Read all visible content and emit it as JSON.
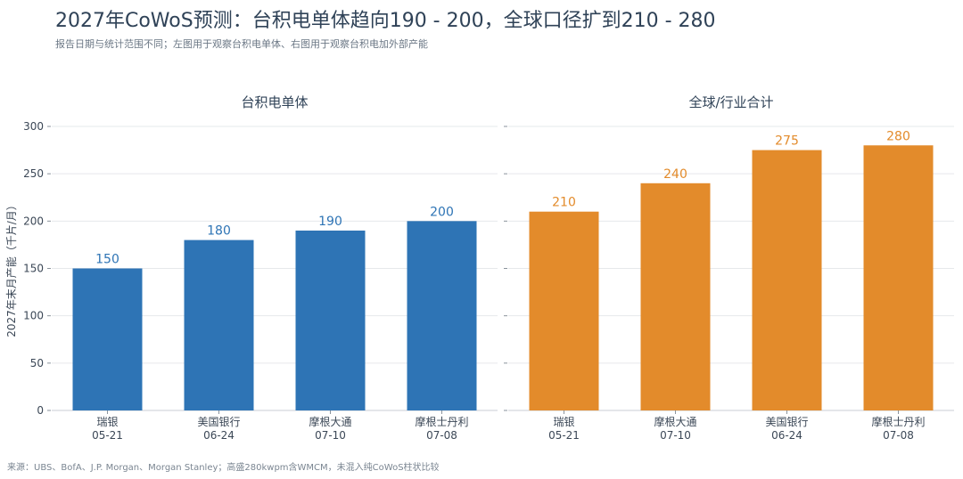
{
  "title": "2027年CoWoS预测：台积电单体趋向190 - 200，全球口径扩到210 - 280",
  "subtitle": "报告日期与统计范围不同；左图用于观察台积电单体、右图用于观察台积电加外部产能",
  "source": "来源：UBS、BofA、J.P. Morgan、Morgan Stanley；高盛280kwpm含WMCM，未混入纯CoWoS柱状比较",
  "chart_data": [
    {
      "type": "bar",
      "title": "台积电单体",
      "ylabel": "2027年末月产能（千片/月）",
      "ylim": [
        0,
        300
      ],
      "yticks": [
        0,
        50,
        100,
        150,
        200,
        250,
        300
      ],
      "color": "#2e74b5",
      "categories": [
        {
          "name": "瑞银",
          "date": "05-21"
        },
        {
          "name": "美国银行",
          "date": "06-24"
        },
        {
          "name": "摩根大通",
          "date": "07-10"
        },
        {
          "name": "摩根士丹利",
          "date": "07-08"
        }
      ],
      "values": [
        150,
        180,
        190,
        200
      ]
    },
    {
      "type": "bar",
      "title": "全球/行业合计",
      "ylim": [
        0,
        300
      ],
      "color": "#e38b2b",
      "categories": [
        {
          "name": "瑞银",
          "date": "05-21"
        },
        {
          "name": "摩根大通",
          "date": "07-10"
        },
        {
          "name": "美国银行",
          "date": "06-24"
        },
        {
          "name": "摩根士丹利",
          "date": "07-08"
        }
      ],
      "values": [
        210,
        240,
        275,
        280
      ]
    }
  ]
}
